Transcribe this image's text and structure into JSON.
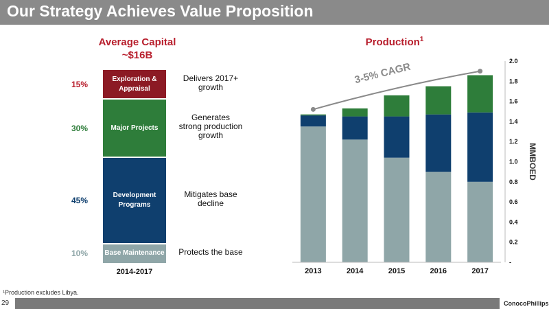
{
  "header": {
    "title": "Our Strategy Achieves Value Proposition"
  },
  "capital": {
    "heading_line1": "Average Capital",
    "heading_line2": "~$16B",
    "period": "2014-2017",
    "segments": [
      {
        "label_line1": "Exploration &",
        "label_line2": "Appraisal",
        "pct": "15%",
        "share": 15,
        "desc_line1": "Delivers 2017+",
        "desc_line2": "growth",
        "desc_line3": "",
        "color": "#8c1a24",
        "pct_color": "#b81f2d"
      },
      {
        "label_line1": "Major Projects",
        "label_line2": "",
        "pct": "30%",
        "share": 30,
        "desc_line1": "Generates",
        "desc_line2": "strong production",
        "desc_line3": "growth",
        "color": "#2e7d3a",
        "pct_color": "#2e7d3a"
      },
      {
        "label_line1": "Development",
        "label_line2": "Programs",
        "pct": "45%",
        "share": 45,
        "desc_line1": "Mitigates base",
        "desc_line2": "decline",
        "desc_line3": "",
        "color": "#0f3f6e",
        "pct_color": "#0f3f6e"
      },
      {
        "label_line1": "Base Maintenance",
        "label_line2": "",
        "pct": "10%",
        "share": 10,
        "desc_line1": "Protects the base",
        "desc_line2": "",
        "desc_line3": "",
        "color": "#8fa6a8",
        "pct_color": "#8fa6a8"
      }
    ]
  },
  "production": {
    "heading": "Production",
    "heading_sup": "1"
  },
  "footnote": "¹Production excludes Libya.",
  "footer": {
    "page_number": "29",
    "logo_text": "ConocoPhillips"
  },
  "chart_data": {
    "type": "bar",
    "stacked": true,
    "categories": [
      "2013",
      "2014",
      "2015",
      "2016",
      "2017"
    ],
    "series": [
      {
        "values": [
          1.35,
          1.22,
          1.04,
          0.9,
          0.8
        ],
        "color": "#8fa6a8"
      },
      {
        "values": [
          0.11,
          0.23,
          0.41,
          0.57,
          0.69
        ],
        "color": "#0f3f6e"
      },
      {
        "values": [
          0.01,
          0.08,
          0.21,
          0.28,
          0.37
        ],
        "color": "#2e7d3a"
      }
    ],
    "trend": {
      "label": "3-5% CAGR",
      "values": [
        1.52,
        null,
        null,
        null,
        1.9
      ]
    },
    "ylabel": "MMBOED",
    "ylim": [
      0,
      2.0
    ],
    "yticks": [
      0,
      0.2,
      0.4,
      0.6,
      0.8,
      1.0,
      1.2,
      1.4,
      1.6,
      1.8,
      2.0
    ],
    "ytick_labels": [
      "-",
      "0.2",
      "0.4",
      "0.6",
      "0.8",
      "1.0",
      "1.2",
      "1.4",
      "1.6",
      "1.8",
      "2.0"
    ],
    "ytick_side": "right",
    "grid": false
  }
}
